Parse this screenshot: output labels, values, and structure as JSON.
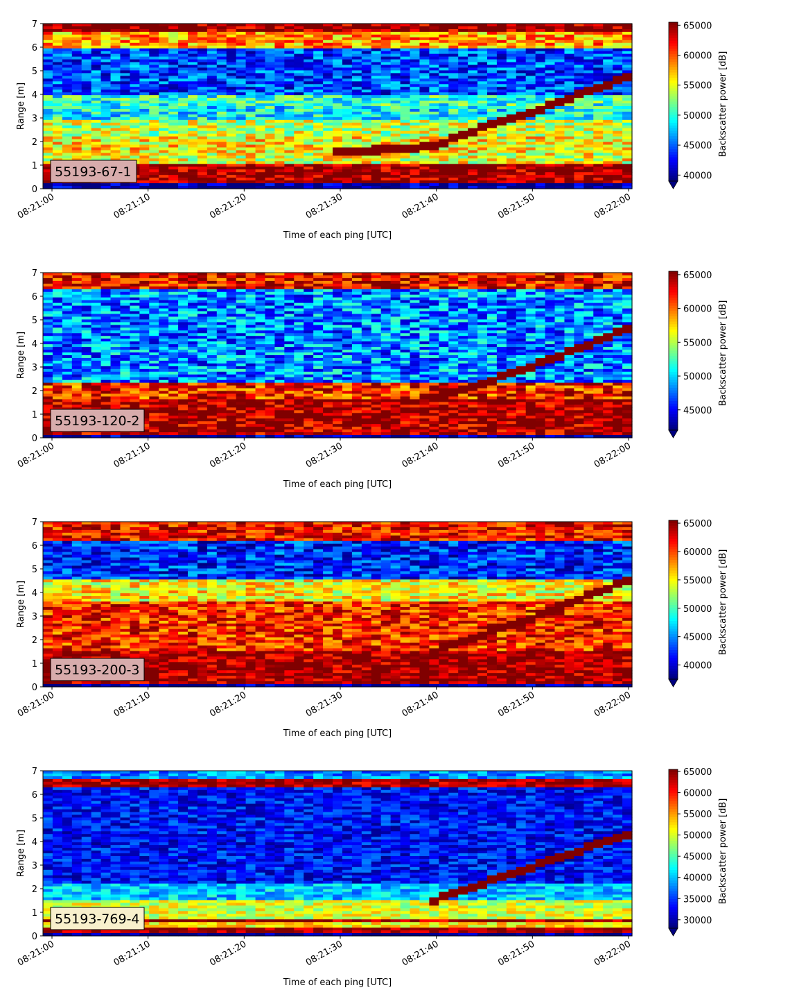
{
  "figure": {
    "colormap": "jet",
    "panels": [
      {
        "label": "55193-67-1",
        "label_bg": "#d8acac",
        "xlabel": "Time of each ping [UTC]",
        "ylabel": "Range [m]",
        "xticks": [
          "08:21:00",
          "08:21:10",
          "08:21:20",
          "08:21:30",
          "08:21:40",
          "08:21:50",
          "08:22:00"
        ],
        "yticks": [
          "0",
          "1",
          "2",
          "3",
          "4",
          "5",
          "6",
          "7"
        ],
        "colorbar_label": "Backscatter power [dB]",
        "colorbar_ticks": [
          "40000",
          "45000",
          "50000",
          "55000",
          "60000",
          "65000"
        ],
        "clim": [
          39000,
          65500
        ]
      },
      {
        "label": "55193-120-2",
        "label_bg": "#d8acac",
        "xlabel": "Time of each ping [UTC]",
        "ylabel": "Range [m]",
        "xticks": [
          "08:21:00",
          "08:21:10",
          "08:21:20",
          "08:21:30",
          "08:21:40",
          "08:21:50",
          "08:22:00"
        ],
        "yticks": [
          "0",
          "1",
          "2",
          "3",
          "4",
          "5",
          "6",
          "7"
        ],
        "colorbar_label": "Backscatter power [dB]",
        "colorbar_ticks": [
          "45000",
          "50000",
          "55000",
          "60000",
          "65000"
        ],
        "clim": [
          42000,
          65500
        ]
      },
      {
        "label": "55193-200-3",
        "label_bg": "#d8acac",
        "xlabel": "Time of each ping [UTC]",
        "ylabel": "Range [m]",
        "xticks": [
          "08:21:00",
          "08:21:10",
          "08:21:20",
          "08:21:30",
          "08:21:40",
          "08:21:50",
          "08:22:00"
        ],
        "yticks": [
          "0",
          "1",
          "2",
          "3",
          "4",
          "5",
          "6",
          "7"
        ],
        "colorbar_label": "Backscatter power [dB]",
        "colorbar_ticks": [
          "40000",
          "45000",
          "50000",
          "55000",
          "60000",
          "65000"
        ],
        "clim": [
          37500,
          65500
        ]
      },
      {
        "label": "55193-769-4",
        "label_bg": "#f8f0cc",
        "xlabel": "Time of each ping [UTC]",
        "ylabel": "Range [m]",
        "xticks": [
          "08:21:00",
          "08:21:10",
          "08:21:20",
          "08:21:30",
          "08:21:40",
          "08:21:50",
          "08:22:00"
        ],
        "yticks": [
          "0",
          "1",
          "2",
          "3",
          "4",
          "5",
          "6",
          "7"
        ],
        "colorbar_label": "Backscatter power [dB]",
        "colorbar_ticks": [
          "30000",
          "35000",
          "40000",
          "45000",
          "50000",
          "55000",
          "60000",
          "65000"
        ],
        "clim": [
          28000,
          65500
        ]
      }
    ]
  },
  "chart_data": [
    {
      "type": "heatmap",
      "x_range": [
        "08:21:00",
        "08:22:00"
      ],
      "ylim": [
        0,
        7
      ],
      "xlabel": "Time of each ping [UTC]",
      "ylabel": "Range [m]",
      "colorbar_label": "Backscatter power [dB]",
      "clim": [
        39000,
        65500
      ],
      "bands": [
        {
          "y": [
            0.2,
            1.1
          ],
          "value": 65000
        },
        {
          "y": [
            1.1,
            1.5
          ],
          "value": 55000
        },
        {
          "y": [
            1.5,
            2.2
          ],
          "value": 56000
        },
        {
          "y": [
            2.2,
            2.9
          ],
          "value": 54000
        },
        {
          "y": [
            2.9,
            3.5
          ],
          "value": 49000
        },
        {
          "y": [
            3.5,
            4.0
          ],
          "value": 50000
        },
        {
          "y": [
            4.0,
            6.0
          ],
          "value": 44000
        },
        {
          "y": [
            6.0,
            6.6
          ],
          "value": 58000
        },
        {
          "y": [
            6.6,
            7.0
          ],
          "value": 65000
        }
      ],
      "trace": [
        {
          "t_s": 30,
          "range_m": 1.55
        },
        {
          "t_s": 35,
          "range_m": 1.65
        },
        {
          "t_s": 40,
          "range_m": 1.8
        },
        {
          "t_s": 45,
          "range_m": 2.6
        },
        {
          "t_s": 50,
          "range_m": 3.2
        },
        {
          "t_s": 55,
          "range_m": 4.0
        },
        {
          "t_s": 60,
          "range_m": 4.7
        }
      ]
    },
    {
      "type": "heatmap",
      "x_range": [
        "08:21:00",
        "08:22:00"
      ],
      "ylim": [
        0,
        7
      ],
      "xlabel": "Time of each ping [UTC]",
      "ylabel": "Range [m]",
      "colorbar_label": "Backscatter power [dB]",
      "clim": [
        42000,
        65500
      ],
      "bands": [
        {
          "y": [
            0.1,
            1.6
          ],
          "value": 65000
        },
        {
          "y": [
            1.6,
            2.3
          ],
          "value": 62000
        },
        {
          "y": [
            2.3,
            6.3
          ],
          "value": 48000
        },
        {
          "y": [
            6.3,
            7.0
          ],
          "value": 63000
        }
      ],
      "trace": [
        {
          "t_s": 40,
          "range_m": 1.7
        },
        {
          "t_s": 45,
          "range_m": 2.3
        },
        {
          "t_s": 50,
          "range_m": 3.0
        },
        {
          "t_s": 55,
          "range_m": 3.8
        },
        {
          "t_s": 60,
          "range_m": 4.6
        }
      ]
    },
    {
      "type": "heatmap",
      "x_range": [
        "08:21:00",
        "08:22:00"
      ],
      "ylim": [
        0,
        7
      ],
      "xlabel": "Time of each ping [UTC]",
      "ylabel": "Range [m]",
      "colorbar_label": "Backscatter power [dB]",
      "clim": [
        37500,
        65500
      ],
      "bands": [
        {
          "y": [
            0.1,
            1.5
          ],
          "value": 65000
        },
        {
          "y": [
            1.5,
            3.6
          ],
          "value": 61000
        },
        {
          "y": [
            3.6,
            4.6
          ],
          "value": 55000
        },
        {
          "y": [
            4.6,
            6.2
          ],
          "value": 42000
        },
        {
          "y": [
            6.2,
            7.0
          ],
          "value": 62000
        }
      ],
      "trace": [
        {
          "t_s": 40,
          "range_m": 1.5
        },
        {
          "t_s": 45,
          "range_m": 2.2
        },
        {
          "t_s": 50,
          "range_m": 2.9
        },
        {
          "t_s": 55,
          "range_m": 3.7
        },
        {
          "t_s": 60,
          "range_m": 4.5
        }
      ]
    },
    {
      "type": "heatmap",
      "x_range": [
        "08:21:00",
        "08:22:00"
      ],
      "ylim": [
        0,
        7
      ],
      "xlabel": "Time of each ping [UTC]",
      "ylabel": "Range [m]",
      "colorbar_label": "Backscatter power [dB]",
      "clim": [
        28000,
        65500
      ],
      "bands": [
        {
          "y": [
            0.15,
            0.35
          ],
          "value": 65000
        },
        {
          "y": [
            0.35,
            0.6
          ],
          "value": 52000
        },
        {
          "y": [
            0.6,
            0.7
          ],
          "value": 64000
        },
        {
          "y": [
            0.7,
            1.5
          ],
          "value": 50000
        },
        {
          "y": [
            1.5,
            2.2
          ],
          "value": 40000
        },
        {
          "y": [
            2.2,
            6.3
          ],
          "value": 33000
        },
        {
          "y": [
            6.3,
            6.7
          ],
          "value": 64000
        },
        {
          "y": [
            6.7,
            7.0
          ],
          "value": 38000
        }
      ],
      "trace": [
        {
          "t_s": 40,
          "range_m": 1.5
        },
        {
          "t_s": 45,
          "range_m": 2.2
        },
        {
          "t_s": 50,
          "range_m": 2.9
        },
        {
          "t_s": 55,
          "range_m": 3.6
        },
        {
          "t_s": 60,
          "range_m": 4.3
        }
      ]
    }
  ]
}
